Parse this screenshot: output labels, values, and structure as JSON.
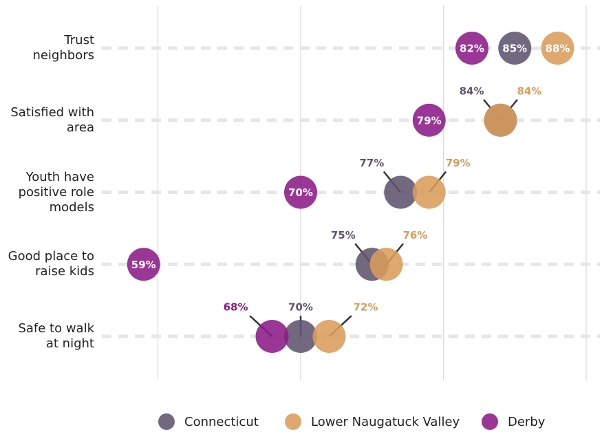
{
  "chart_data": {
    "type": "dot",
    "categories": [
      "Trust neighbors",
      "Satisfied with area",
      "Youth have positive role models",
      "Good place to raise kids",
      "Safe to walk at night"
    ],
    "series": [
      {
        "name": "Connecticut",
        "color": "#5e5470",
        "values": [
          85,
          84,
          77,
          75,
          70
        ],
        "value_labels": [
          "85%",
          "84%",
          "77%",
          "75%",
          "70%"
        ]
      },
      {
        "name": "Lower Naugatuck Valley",
        "color": "#d99c5b",
        "values": [
          88,
          84,
          79,
          76,
          72
        ],
        "value_labels": [
          "88%",
          "84%",
          "79%",
          "76%",
          "72%"
        ]
      },
      {
        "name": "Derby",
        "color": "#8b1a87",
        "values": [
          82,
          79,
          70,
          59,
          68
        ],
        "value_labels": [
          "82%",
          "79%",
          "70%",
          "59%",
          "68%"
        ]
      }
    ],
    "xlim": [
      56,
      91
    ],
    "xticks": [
      60,
      70,
      80,
      90
    ],
    "grid": true,
    "legend": "bottom"
  }
}
